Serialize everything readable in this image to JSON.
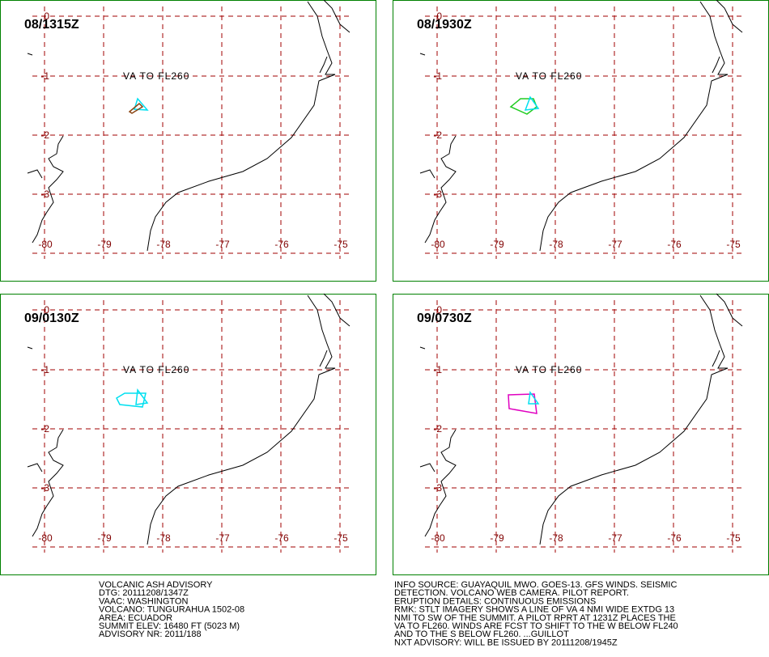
{
  "panels": [
    {
      "time": "08/1315Z",
      "label": "VA TO FL260"
    },
    {
      "time": "08/1930Z",
      "label": "VA TO FL260"
    },
    {
      "time": "09/0130Z",
      "label": "VA TO FL260"
    },
    {
      "time": "09/0730Z",
      "label": "VA TO FL260"
    }
  ],
  "lat_labels": [
    "0",
    "-1",
    "-2",
    "-3"
  ],
  "lon_labels": [
    "-80",
    "-79",
    "-78",
    "-77",
    "-76",
    "-75"
  ],
  "advisory": {
    "left": [
      "VOLCANIC ASH ADVISORY",
      "DTG: 20111208/1347Z",
      "VAAC: WASHINGTON",
      "VOLCANO: TUNGURAHUA 1502-08",
      "AREA: ECUADOR",
      "SUMMIT ELEV: 16480 FT (5023 M)",
      "ADVISORY NR: 2011/188"
    ],
    "right": [
      "INFO SOURCE: GUAYAQUIL MWO. GOES-13. GFS WINDS. SEISMIC",
      "DETECTION. VOLCANO WEB CAMERA. PILOT REPORT.",
      "ERUPTION DETAILS: CONTINUOUS EMISSIONS",
      "RMK: STLT IMAGERY SHOWS A LINE OF VA 4 NMI WIDE EXTDG 13",
      "NMI TO SW OF THE SUMMIT. A PILOT RPRT AT 1231Z PLACES THE",
      "VA TO FL260. WINDS ARE FCST TO SHIFT TO THE W BELOW FL240",
      "AND TO THE S BELOW FL260. ...GUILLOT",
      "NXT ADVISORY: WILL BE ISSUED BY 20111208/1945Z"
    ]
  }
}
